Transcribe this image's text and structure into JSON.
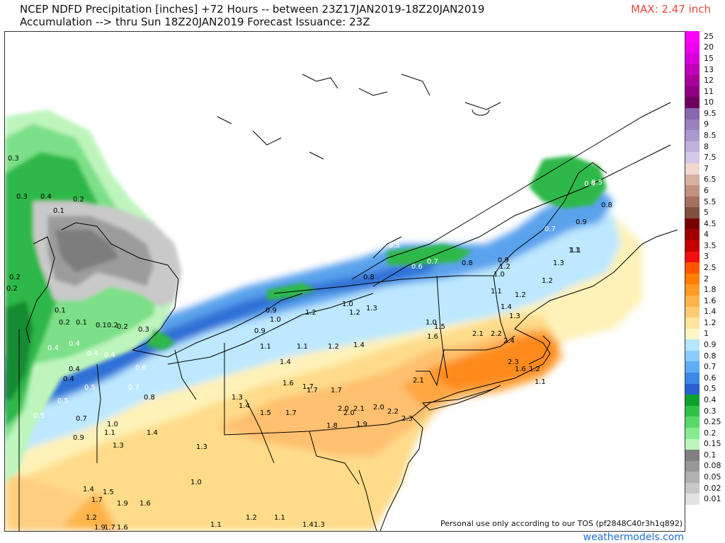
{
  "header": {
    "title_line1": "NCEP NDFD Precipitation [inches] +72 Hours -- between 23Z17JAN2019-18Z20JAN2019",
    "title_line2": "Accumulation --> thru Sun 18Z20JAN2019   Forecast Issuance: 23Z",
    "max_label": "MAX: 2.47 inch"
  },
  "footer": {
    "tos_text": "Personal use only according to our TOS (pf2848C40r3h1q892)",
    "site": "weathermodels.com"
  },
  "legend": [
    {
      "label": "25",
      "color": "#ff00ff"
    },
    {
      "label": "20",
      "color": "#ee00ee"
    },
    {
      "label": "15",
      "color": "#d800d8"
    },
    {
      "label": "13",
      "color": "#c000b8"
    },
    {
      "label": "12",
      "color": "#a80098"
    },
    {
      "label": "11",
      "color": "#900080"
    },
    {
      "label": "10",
      "color": "#700060"
    },
    {
      "label": "9.5",
      "color": "#8868b0"
    },
    {
      "label": "9",
      "color": "#9a80c0"
    },
    {
      "label": "8.5",
      "color": "#ac98d0"
    },
    {
      "label": "8",
      "color": "#c0b0dc"
    },
    {
      "label": "7.5",
      "color": "#d4c8e6"
    },
    {
      "label": "7",
      "color": "#f0d8cc"
    },
    {
      "label": "6.5",
      "color": "#d8b0a0"
    },
    {
      "label": "6",
      "color": "#c09080"
    },
    {
      "label": "5.5",
      "color": "#a87060"
    },
    {
      "label": "5",
      "color": "#805040"
    },
    {
      "label": "4.5",
      "color": "#7a0000"
    },
    {
      "label": "4",
      "color": "#a00000"
    },
    {
      "label": "3.5",
      "color": "#c80000"
    },
    {
      "label": "3",
      "color": "#f01010"
    },
    {
      "label": "2.5",
      "color": "#ff5500"
    },
    {
      "label": "2",
      "color": "#ff7f00"
    },
    {
      "label": "1.8",
      "color": "#ff9a22"
    },
    {
      "label": "1.6",
      "color": "#ffb44a"
    },
    {
      "label": "1.4",
      "color": "#ffcb74"
    },
    {
      "label": "1.2",
      "color": "#ffe49e"
    },
    {
      "label": "1",
      "color": "#fff6c8"
    },
    {
      "label": "0.9",
      "color": "#b4e6ff"
    },
    {
      "label": "0.8",
      "color": "#8cccff"
    },
    {
      "label": "0.7",
      "color": "#60acf4"
    },
    {
      "label": "0.6",
      "color": "#3c88e6"
    },
    {
      "label": "0.5",
      "color": "#2860d0"
    },
    {
      "label": "0.4",
      "color": "#10a030"
    },
    {
      "label": "0.3",
      "color": "#30c048"
    },
    {
      "label": "0.25",
      "color": "#58d868"
    },
    {
      "label": "0.2",
      "color": "#88ea90"
    },
    {
      "label": "0.15",
      "color": "#bcf6bc"
    },
    {
      "label": "0.1",
      "color": "#808080"
    },
    {
      "label": "0.08",
      "color": "#989898"
    },
    {
      "label": "0.05",
      "color": "#b0b0b0"
    },
    {
      "label": "0.02",
      "color": "#c8c8c8"
    },
    {
      "label": "0.01",
      "color": "#e2e2e2"
    }
  ],
  "map_values": [
    {
      "v": "0.3",
      "c": "#000"
    },
    {
      "v": "0.4",
      "c": "#000"
    },
    {
      "v": "0.2",
      "c": "#000"
    },
    {
      "v": "0.3",
      "c": "#000"
    },
    {
      "v": "0.1",
      "c": "#000"
    },
    {
      "v": "0.2",
      "c": "#000"
    },
    {
      "v": "0.2",
      "c": "#000"
    },
    {
      "v": "0.1",
      "c": "#000"
    },
    {
      "v": "0.2",
      "c": "#000"
    },
    {
      "v": "0.1",
      "c": "#000"
    },
    {
      "v": "0.1",
      "c": "#000"
    },
    {
      "v": "0.2",
      "c": "#000"
    },
    {
      "v": "0.2",
      "c": "#000"
    },
    {
      "v": "0.3",
      "c": "#000"
    },
    {
      "v": "0.4",
      "c": "#fff"
    },
    {
      "v": "0.4",
      "c": "#fff"
    },
    {
      "v": "0.4",
      "c": "#fff"
    },
    {
      "v": "0.4",
      "c": "#fff"
    },
    {
      "v": "0.6",
      "c": "#fff"
    },
    {
      "v": "0.4",
      "c": "#000"
    },
    {
      "v": "0.4",
      "c": "#000"
    },
    {
      "v": "0.5",
      "c": "#fff"
    },
    {
      "v": "0.7",
      "c": "#fff"
    },
    {
      "v": "0.5",
      "c": "#fff"
    },
    {
      "v": "0.5",
      "c": "#fff"
    },
    {
      "v": "0.7",
      "c": "#000"
    },
    {
      "v": "0.8",
      "c": "#000"
    },
    {
      "v": "0.9",
      "c": "#000"
    },
    {
      "v": "1.0",
      "c": "#000"
    },
    {
      "v": "1.2",
      "c": "#000"
    },
    {
      "v": "1.5",
      "c": "#000"
    },
    {
      "v": "1.4",
      "c": "#000"
    },
    {
      "v": "1.7",
      "c": "#000"
    },
    {
      "v": "1.9",
      "c": "#000"
    },
    {
      "v": "1.6",
      "c": "#000"
    },
    {
      "v": "1.9",
      "c": "#000"
    },
    {
      "v": "1.7",
      "c": "#000"
    },
    {
      "v": "1.6",
      "c": "#000"
    },
    {
      "v": "0.9",
      "c": "#000"
    },
    {
      "v": "1.0",
      "c": "#000"
    },
    {
      "v": "1.2",
      "c": "#000"
    },
    {
      "v": "1.0",
      "c": "#000"
    },
    {
      "v": "1.2",
      "c": "#000"
    },
    {
      "v": "1.3",
      "c": "#000"
    },
    {
      "v": "0.9",
      "c": "#000"
    },
    {
      "v": "1.1",
      "c": "#000"
    },
    {
      "v": "1.1",
      "c": "#000"
    },
    {
      "v": "1.2",
      "c": "#000"
    },
    {
      "v": "1.4",
      "c": "#000"
    },
    {
      "v": "1.4",
      "c": "#000"
    },
    {
      "v": "1.6",
      "c": "#000"
    },
    {
      "v": "1.7",
      "c": "#000"
    },
    {
      "v": "1.7",
      "c": "#000"
    },
    {
      "v": "1.5",
      "c": "#000"
    },
    {
      "v": "1.7",
      "c": "#000"
    },
    {
      "v": "2.0",
      "c": "#000"
    },
    {
      "v": "2.0",
      "c": "#000"
    },
    {
      "v": "2.1",
      "c": "#000"
    },
    {
      "v": "1.9",
      "c": "#000"
    },
    {
      "v": "1.8",
      "c": "#000"
    },
    {
      "v": "2.0",
      "c": "#000"
    },
    {
      "v": "2.2",
      "c": "#000"
    },
    {
      "v": "2.3",
      "c": "#000"
    },
    {
      "v": "2.1",
      "c": "#000"
    },
    {
      "v": "1.3",
      "c": "#000"
    },
    {
      "v": "1.4",
      "c": "#000"
    },
    {
      "v": "1.7",
      "c": "#000"
    },
    {
      "v": "2.1",
      "c": "#000"
    },
    {
      "v": "2.2",
      "c": "#000"
    },
    {
      "v": "2.4",
      "c": "#000"
    },
    {
      "v": "2.3",
      "c": "#000"
    },
    {
      "v": "1.6",
      "c": "#000"
    },
    {
      "v": "1.2",
      "c": "#000"
    },
    {
      "v": "1.1",
      "c": "#000"
    },
    {
      "v": "1.1",
      "c": "#000"
    },
    {
      "v": "1.3",
      "c": "#000"
    },
    {
      "v": "1.4",
      "c": "#000"
    },
    {
      "v": "1.3",
      "c": "#000"
    },
    {
      "v": "1.0",
      "c": "#000"
    },
    {
      "v": "1.1",
      "c": "#000"
    },
    {
      "v": "1.2",
      "c": "#000"
    },
    {
      "v": "1.1",
      "c": "#000"
    },
    {
      "v": "1.4",
      "c": "#000"
    },
    {
      "v": "1.3",
      "c": "#000"
    },
    {
      "v": "0.5",
      "c": "#fff"
    },
    {
      "v": "0.6",
      "c": "#fff"
    },
    {
      "v": "0.7",
      "c": "#fff"
    },
    {
      "v": "0.8",
      "c": "#000"
    },
    {
      "v": "0.8",
      "c": "#000"
    },
    {
      "v": "0.9",
      "c": "#000"
    },
    {
      "v": "1.0",
      "c": "#000"
    },
    {
      "v": "1.2",
      "c": "#000"
    },
    {
      "v": "1.1",
      "c": "#000"
    },
    {
      "v": "0.7",
      "c": "#fff"
    },
    {
      "v": "0.9",
      "c": "#000"
    },
    {
      "v": "0.8",
      "c": "#000"
    },
    {
      "v": "0.4",
      "c": "#fff"
    },
    {
      "v": "0.5",
      "c": "#fff"
    },
    {
      "v": "1.1",
      "c": "#000"
    },
    {
      "v": "1.2",
      "c": "#000"
    },
    {
      "v": "1.3",
      "c": "#000"
    },
    {
      "v": "1.6",
      "c": "#000"
    },
    {
      "v": "1.5",
      "c": "#000"
    },
    {
      "v": "1.0",
      "c": "#000"
    },
    {
      "v": "1.1",
      "c": "#000"
    },
    {
      "v": "1.4",
      "c": "#000"
    },
    {
      "v": "1.3",
      "c": "#000"
    },
    {
      "v": "1.2",
      "c": "#000"
    }
  ]
}
